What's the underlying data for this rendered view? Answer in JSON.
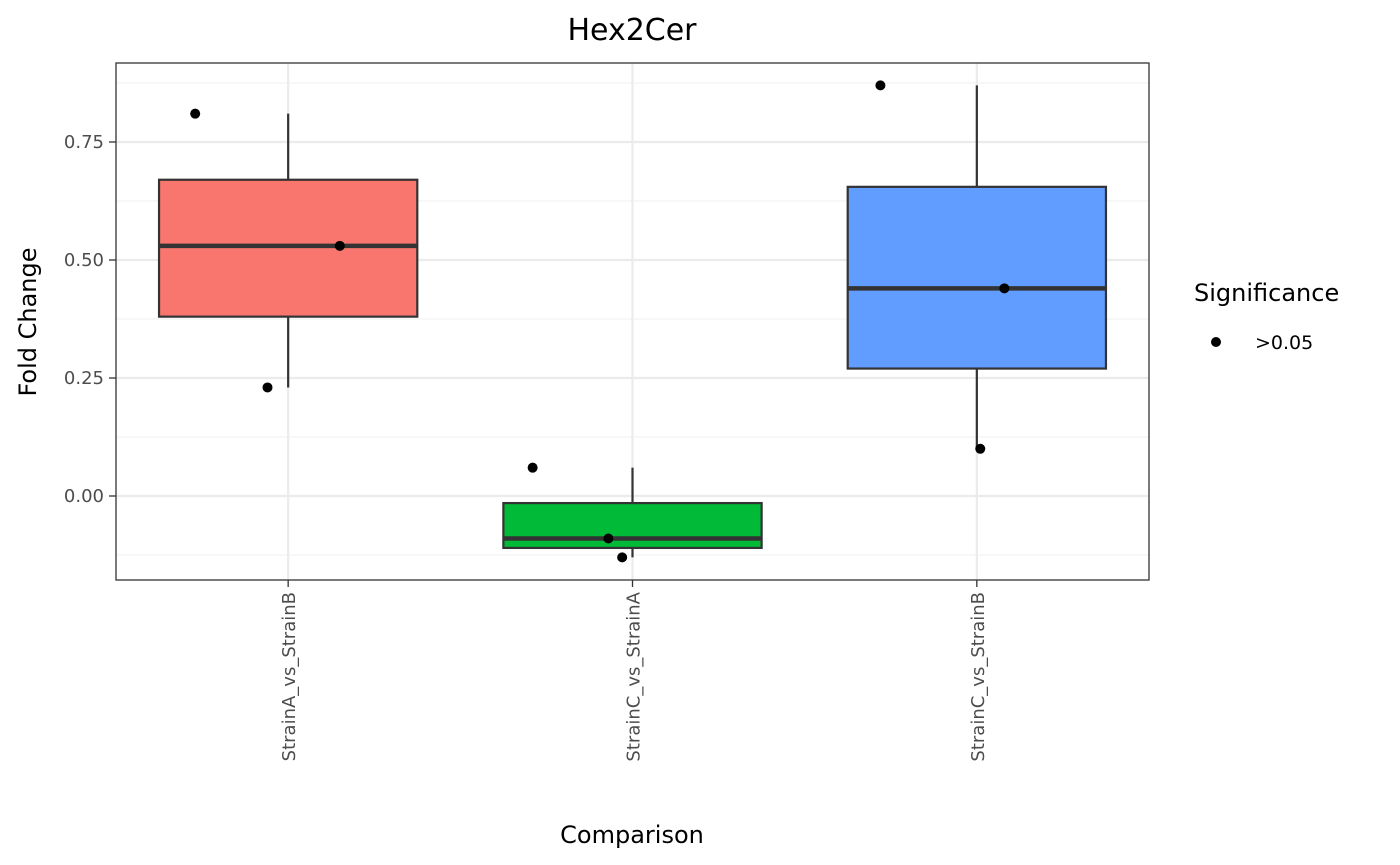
{
  "chart_data": {
    "type": "box",
    "title": "Hex2Cer",
    "xlabel": "Comparison",
    "ylabel": "Fold Change",
    "ylim": [
      -0.18,
      0.92
    ],
    "yticks": [
      0.0,
      0.25,
      0.5,
      0.75
    ],
    "ytick_labels": [
      "0.00",
      "0.25",
      "0.50",
      "0.75"
    ],
    "grid": true,
    "legend": {
      "title": "Significance",
      "placement": "right",
      "entries": [
        {
          "label": ">0.05",
          "color": "#000000"
        }
      ]
    },
    "categories": [
      "StrainA_vs_StrainB",
      "StrainC_vs_StrainA",
      "StrainC_vs_StrainB"
    ],
    "boxes": [
      {
        "category": "StrainA_vs_StrainB",
        "color": "#F8766D",
        "lower_whisker": 0.23,
        "q1": 0.38,
        "median": 0.53,
        "q3": 0.67,
        "upper_whisker": 0.81
      },
      {
        "category": "StrainC_vs_StrainA",
        "color": "#00BA38",
        "lower_whisker": -0.13,
        "q1": -0.11,
        "median": -0.09,
        "q3": -0.015,
        "upper_whisker": 0.06
      },
      {
        "category": "StrainC_vs_StrainB",
        "color": "#619CFF",
        "lower_whisker": 0.1,
        "q1": 0.27,
        "median": 0.44,
        "q3": 0.655,
        "upper_whisker": 0.87
      }
    ],
    "points": [
      {
        "category": "StrainA_vs_StrainB",
        "jitter": -0.27,
        "y": 0.81
      },
      {
        "category": "StrainA_vs_StrainB",
        "jitter": 0.15,
        "y": 0.53
      },
      {
        "category": "StrainA_vs_StrainB",
        "jitter": -0.06,
        "y": 0.23
      },
      {
        "category": "StrainC_vs_StrainA",
        "jitter": -0.29,
        "y": 0.06
      },
      {
        "category": "StrainC_vs_StrainA",
        "jitter": -0.07,
        "y": -0.09
      },
      {
        "category": "StrainC_vs_StrainA",
        "jitter": -0.03,
        "y": -0.13
      },
      {
        "category": "StrainC_vs_StrainB",
        "jitter": -0.28,
        "y": 0.87
      },
      {
        "category": "StrainC_vs_StrainB",
        "jitter": 0.08,
        "y": 0.44
      },
      {
        "category": "StrainC_vs_StrainB",
        "jitter": 0.01,
        "y": 0.1
      }
    ]
  }
}
